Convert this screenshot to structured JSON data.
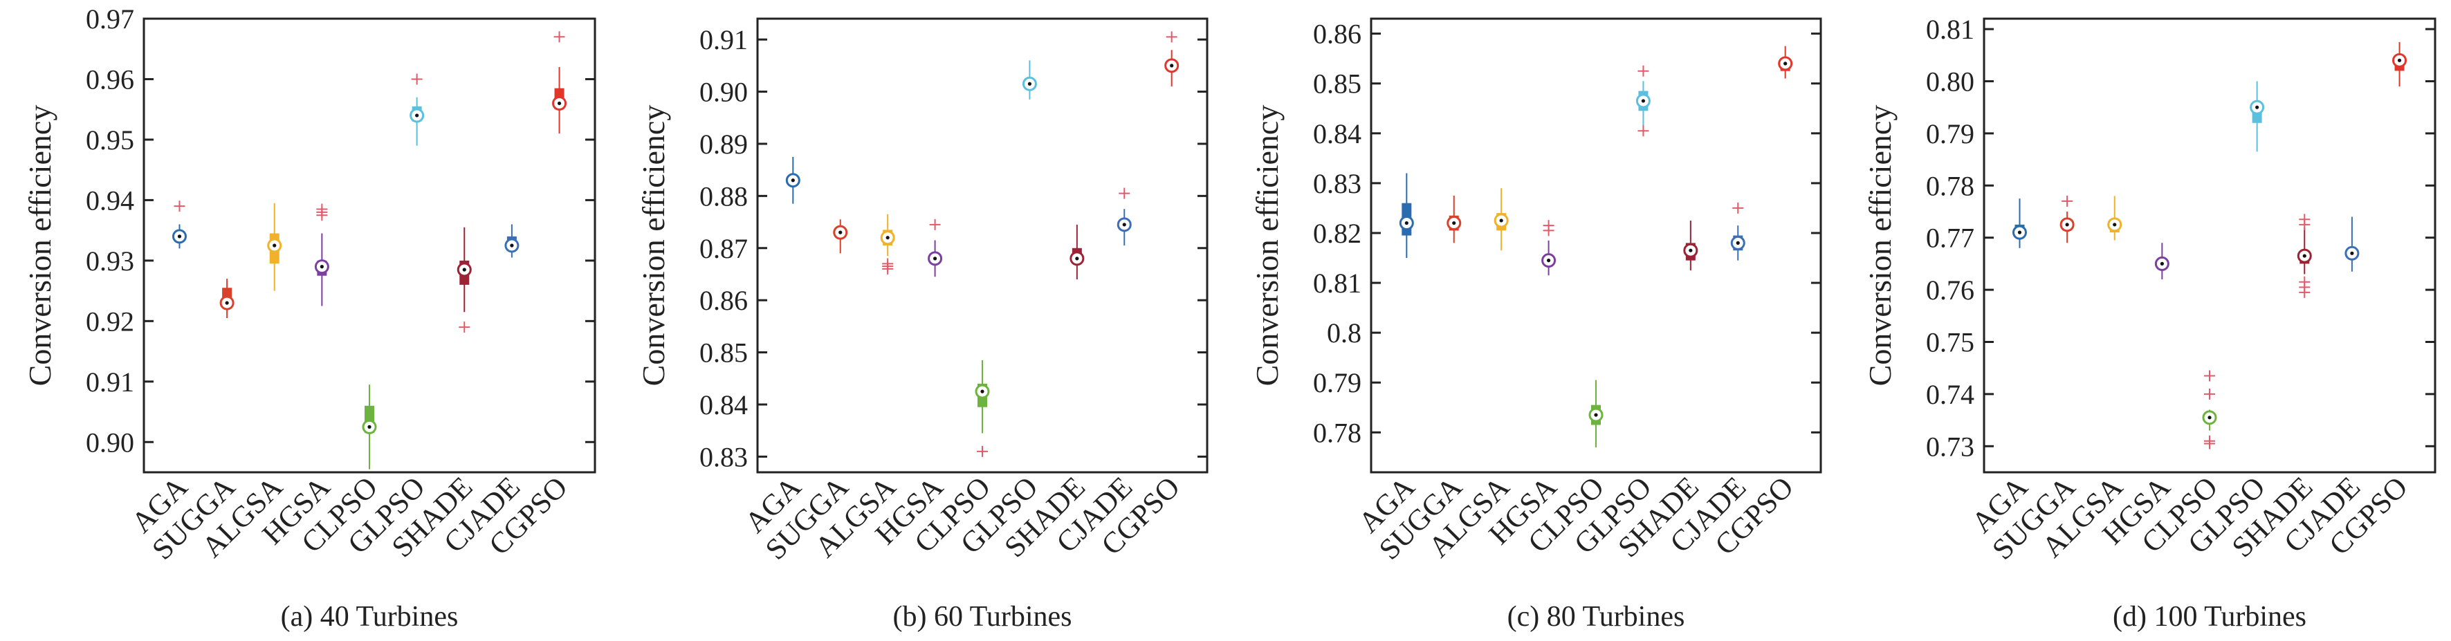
{
  "chart_data": [
    {
      "type": "boxplot",
      "caption": "(a) 40 Turbines",
      "ylabel": "Conversion efficiency",
      "ylim": [
        0.895,
        0.97
      ],
      "yticks": [
        0.9,
        0.91,
        0.92,
        0.93,
        0.94,
        0.95,
        0.96,
        0.97
      ],
      "ytick_labels": [
        "0.90",
        "0.91",
        "0.92",
        "0.93",
        "0.94",
        "0.95",
        "0.96",
        "0.97"
      ],
      "categories": [
        "AGA",
        "SUGGA",
        "ALGSA",
        "HGSA",
        "CLPSO",
        "GLPSO",
        "SHADE",
        "CJADE",
        "CGPSO"
      ],
      "colors": [
        "#2b6cb0",
        "#d9412b",
        "#f0b22a",
        "#7b3fa0",
        "#6db33f",
        "#5bc0de",
        "#9b2335",
        "#3a6fb5",
        "#e2362b"
      ],
      "boxes": [
        {
          "min": 0.932,
          "q1": 0.9335,
          "median": 0.934,
          "q3": 0.9345,
          "max": 0.936,
          "outliers": [
            0.939
          ]
        },
        {
          "min": 0.9205,
          "q1": 0.9225,
          "median": 0.923,
          "q3": 0.9255,
          "max": 0.927,
          "outliers": []
        },
        {
          "min": 0.925,
          "q1": 0.9295,
          "median": 0.9325,
          "q3": 0.9345,
          "max": 0.9395,
          "outliers": []
        },
        {
          "min": 0.9225,
          "q1": 0.9275,
          "median": 0.929,
          "q3": 0.93,
          "max": 0.9345,
          "outliers": [
            0.9375,
            0.938,
            0.9385
          ]
        },
        {
          "min": 0.8955,
          "q1": 0.9015,
          "median": 0.9025,
          "q3": 0.906,
          "max": 0.9095,
          "outliers": []
        },
        {
          "min": 0.949,
          "q1": 0.953,
          "median": 0.954,
          "q3": 0.9555,
          "max": 0.957,
          "outliers": [
            0.96
          ]
        },
        {
          "min": 0.9215,
          "q1": 0.926,
          "median": 0.9285,
          "q3": 0.93,
          "max": 0.9355,
          "outliers": [
            0.919
          ]
        },
        {
          "min": 0.9305,
          "q1": 0.932,
          "median": 0.9325,
          "q3": 0.934,
          "max": 0.936,
          "outliers": []
        },
        {
          "min": 0.951,
          "q1": 0.955,
          "median": 0.956,
          "q3": 0.9585,
          "max": 0.962,
          "outliers": [
            0.967
          ]
        }
      ]
    },
    {
      "type": "boxplot",
      "caption": "(b) 60 Turbines",
      "ylabel": "Conversion efficiency",
      "ylim": [
        0.827,
        0.914
      ],
      "yticks": [
        0.83,
        0.84,
        0.85,
        0.86,
        0.87,
        0.88,
        0.89,
        0.9,
        0.91
      ],
      "ytick_labels": [
        "0.83",
        "0.84",
        "0.85",
        "0.86",
        "0.87",
        "0.88",
        "0.89",
        "0.90",
        "0.91"
      ],
      "categories": [
        "AGA",
        "SUGGA",
        "ALGSA",
        "HGSA",
        "CLPSO",
        "GLPSO",
        "SHADE",
        "CJADE",
        "CGPSO"
      ],
      "colors": [
        "#2b6cb0",
        "#d9412b",
        "#f0b22a",
        "#7b3fa0",
        "#6db33f",
        "#5bc0de",
        "#9b2335",
        "#3a6fb5",
        "#e2362b"
      ],
      "boxes": [
        {
          "min": 0.8785,
          "q1": 0.882,
          "median": 0.883,
          "q3": 0.884,
          "max": 0.8875,
          "outliers": []
        },
        {
          "min": 0.869,
          "q1": 0.872,
          "median": 0.873,
          "q3": 0.874,
          "max": 0.8755,
          "outliers": []
        },
        {
          "min": 0.8685,
          "q1": 0.8705,
          "median": 0.872,
          "q3": 0.8735,
          "max": 0.8765,
          "outliers": [
            0.866,
            0.8665,
            0.867
          ]
        },
        {
          "min": 0.8645,
          "q1": 0.867,
          "median": 0.868,
          "q3": 0.869,
          "max": 0.8715,
          "outliers": [
            0.8745
          ]
        },
        {
          "min": 0.8345,
          "q1": 0.8395,
          "median": 0.8425,
          "q3": 0.844,
          "max": 0.8485,
          "outliers": [
            0.831
          ]
        },
        {
          "min": 0.8985,
          "q1": 0.9005,
          "median": 0.9015,
          "q3": 0.9025,
          "max": 0.906,
          "outliers": []
        },
        {
          "min": 0.864,
          "q1": 0.867,
          "median": 0.868,
          "q3": 0.87,
          "max": 0.8745,
          "outliers": []
        },
        {
          "min": 0.8705,
          "q1": 0.8735,
          "median": 0.8745,
          "q3": 0.8755,
          "max": 0.8775,
          "outliers": [
            0.8805
          ]
        },
        {
          "min": 0.901,
          "q1": 0.904,
          "median": 0.905,
          "q3": 0.906,
          "max": 0.908,
          "outliers": [
            0.9105
          ]
        }
      ]
    },
    {
      "type": "boxplot",
      "caption": "(c) 80 Turbines",
      "ylabel": "Conversion efficiency",
      "ylim": [
        0.772,
        0.863
      ],
      "yticks": [
        0.78,
        0.79,
        0.8,
        0.81,
        0.82,
        0.83,
        0.84,
        0.85,
        0.86
      ],
      "ytick_labels": [
        "0.78",
        "0.79",
        "0.8",
        "0.81",
        "0.82",
        "0.83",
        "0.84",
        "0.85",
        "0.86"
      ],
      "categories": [
        "AGA",
        "SUGGA",
        "ALGSA",
        "HGSA",
        "CLPSO",
        "GLPSO",
        "SHADE",
        "CJADE",
        "CGPSO"
      ],
      "colors": [
        "#2b6cb0",
        "#d9412b",
        "#f0b22a",
        "#7b3fa0",
        "#6db33f",
        "#5bc0de",
        "#9b2335",
        "#3a6fb5",
        "#e2362b"
      ],
      "boxes": [
        {
          "min": 0.815,
          "q1": 0.8195,
          "median": 0.822,
          "q3": 0.826,
          "max": 0.832,
          "outliers": []
        },
        {
          "min": 0.818,
          "q1": 0.8205,
          "median": 0.822,
          "q3": 0.8235,
          "max": 0.8275,
          "outliers": []
        },
        {
          "min": 0.8165,
          "q1": 0.8205,
          "median": 0.8225,
          "q3": 0.824,
          "max": 0.829,
          "outliers": []
        },
        {
          "min": 0.8115,
          "q1": 0.8135,
          "median": 0.8145,
          "q3": 0.8155,
          "max": 0.8185,
          "outliers": [
            0.8205,
            0.8215
          ]
        },
        {
          "min": 0.777,
          "q1": 0.7815,
          "median": 0.7835,
          "q3": 0.7855,
          "max": 0.7905,
          "outliers": []
        },
        {
          "min": 0.8415,
          "q1": 0.8445,
          "median": 0.8465,
          "q3": 0.8485,
          "max": 0.8505,
          "outliers": [
            0.8405,
            0.8525
          ]
        },
        {
          "min": 0.8125,
          "q1": 0.8145,
          "median": 0.8165,
          "q3": 0.818,
          "max": 0.8225,
          "outliers": []
        },
        {
          "min": 0.8145,
          "q1": 0.8165,
          "median": 0.818,
          "q3": 0.8195,
          "max": 0.8215,
          "outliers": [
            0.825
          ]
        },
        {
          "min": 0.851,
          "q1": 0.8525,
          "median": 0.854,
          "q3": 0.855,
          "max": 0.8575,
          "outliers": []
        }
      ]
    },
    {
      "type": "boxplot",
      "caption": "(d) 100 Turbines",
      "ylabel": "Conversion efficiency",
      "ylim": [
        0.725,
        0.812
      ],
      "yticks": [
        0.73,
        0.74,
        0.75,
        0.76,
        0.77,
        0.78,
        0.79,
        0.8,
        0.81
      ],
      "ytick_labels": [
        "0.73",
        "0.74",
        "0.75",
        "0.76",
        "0.77",
        "0.78",
        "0.79",
        "0.80",
        "0.81"
      ],
      "categories": [
        "AGA",
        "SUGGA",
        "ALGSA",
        "HGSA",
        "CLPSO",
        "GLPSO",
        "SHADE",
        "CJADE",
        "CGPSO"
      ],
      "colors": [
        "#2b6cb0",
        "#d9412b",
        "#f0b22a",
        "#7b3fa0",
        "#6db33f",
        "#5bc0de",
        "#9b2335",
        "#3a6fb5",
        "#e2362b"
      ],
      "boxes": [
        {
          "min": 0.768,
          "q1": 0.77,
          "median": 0.771,
          "q3": 0.7725,
          "max": 0.7775,
          "outliers": []
        },
        {
          "min": 0.769,
          "q1": 0.7715,
          "median": 0.7725,
          "q3": 0.7735,
          "max": 0.775,
          "outliers": [
            0.777
          ]
        },
        {
          "min": 0.7695,
          "q1": 0.771,
          "median": 0.7725,
          "q3": 0.7735,
          "max": 0.778,
          "outliers": []
        },
        {
          "min": 0.762,
          "q1": 0.764,
          "median": 0.765,
          "q3": 0.766,
          "max": 0.769,
          "outliers": []
        },
        {
          "min": 0.733,
          "q1": 0.735,
          "median": 0.7355,
          "q3": 0.736,
          "max": 0.737,
          "outliers": [
            0.7305,
            0.731,
            0.74,
            0.7435
          ]
        },
        {
          "min": 0.7865,
          "q1": 0.792,
          "median": 0.795,
          "q3": 0.796,
          "max": 0.8,
          "outliers": []
        },
        {
          "min": 0.763,
          "q1": 0.765,
          "median": 0.7665,
          "q3": 0.7675,
          "max": 0.772,
          "outliers": [
            0.7595,
            0.7605,
            0.7615,
            0.7725,
            0.7735
          ]
        },
        {
          "min": 0.7635,
          "q1": 0.766,
          "median": 0.767,
          "q3": 0.768,
          "max": 0.774,
          "outliers": []
        },
        {
          "min": 0.799,
          "q1": 0.802,
          "median": 0.804,
          "q3": 0.805,
          "max": 0.8075,
          "outliers": []
        }
      ]
    }
  ]
}
